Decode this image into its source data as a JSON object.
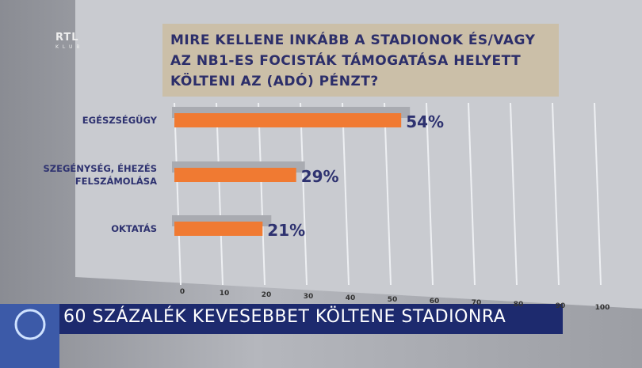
{
  "logo": {
    "top": "RTL",
    "bottom": "KLUB"
  },
  "caption": "60 SZÁZALÉK KEVESEBBET KÖLTENE STADIONRA",
  "chart_data": {
    "type": "bar",
    "orientation": "horizontal",
    "title": "MIRE KELLENE INKÁBB A STADIONOK ÉS/VAGY AZ NB1-ES FOCISTÁK TÁMOGATÁSA HELYETT KÖLTENI AZ (ADÓ) PÉNZT?",
    "categories": [
      "EGÉSZSÉGÜGY",
      "SZEGÉNYSÉG, ÉHEZÉS FELSZÁMOLÁSA",
      "OKTATÁS"
    ],
    "values": [
      54,
      29,
      21
    ],
    "value_labels": [
      "54%",
      "29%",
      "21%"
    ],
    "color": "#f07a32",
    "xlim": [
      0,
      100
    ],
    "xticks": [
      0,
      10,
      20,
      30,
      40,
      50,
      60,
      70,
      80,
      90,
      100
    ],
    "grid": true
  }
}
